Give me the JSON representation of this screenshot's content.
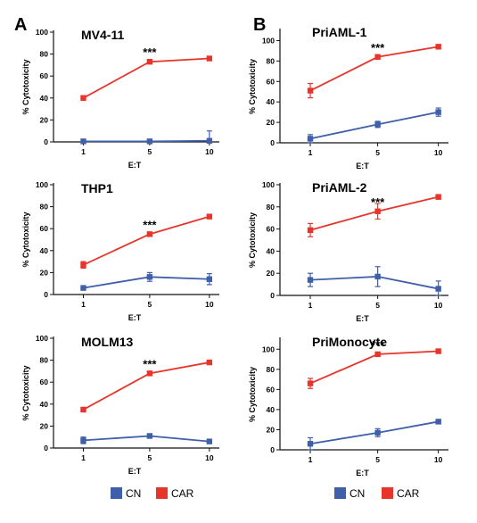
{
  "panel_letters": [
    "A",
    "B"
  ],
  "colors": {
    "CN": "#3f5faa",
    "CAR": "#e8352b"
  },
  "legend": [
    {
      "label": "CN",
      "color": "#3f5faa"
    },
    {
      "label": "CAR",
      "color": "#e8352b"
    }
  ],
  "chart_data": [
    {
      "type": "line",
      "panel": "A",
      "title": "MV4-11",
      "xlabel": "E:T",
      "ylabel": "% Cytotoxicity",
      "categories": [
        "1",
        "5",
        "10"
      ],
      "ylim": [
        0,
        100
      ],
      "yticks": [
        "0",
        "20",
        "40",
        "60",
        "80",
        "100"
      ],
      "significance": "***",
      "significance_at": "5",
      "series": [
        {
          "name": "CN",
          "color": "#3f5faa",
          "values": [
            0.5,
            0.5,
            1
          ],
          "errors": [
            1.5,
            1,
            9
          ]
        },
        {
          "name": "CAR",
          "color": "#e8352b",
          "values": [
            40,
            73,
            76
          ],
          "errors": [
            2,
            1.5,
            1
          ]
        }
      ]
    },
    {
      "type": "line",
      "panel": "A",
      "title": "THP1",
      "xlabel": "E:T",
      "ylabel": "% Cytotoxicity",
      "categories": [
        "1",
        "5",
        "10"
      ],
      "ylim": [
        0,
        100
      ],
      "yticks": [
        "0",
        "20",
        "40",
        "60",
        "80",
        "100"
      ],
      "significance": "***",
      "significance_at": "5",
      "series": [
        {
          "name": "CN",
          "color": "#3f5faa",
          "values": [
            6,
            16,
            14
          ],
          "errors": [
            1,
            4,
            5
          ]
        },
        {
          "name": "CAR",
          "color": "#e8352b",
          "values": [
            27,
            55,
            71
          ],
          "errors": [
            3,
            1.5,
            1
          ]
        }
      ]
    },
    {
      "type": "line",
      "panel": "A",
      "title": "MOLM13",
      "xlabel": "E:T",
      "ylabel": "% Cytotoxicity",
      "categories": [
        "1",
        "5",
        "10"
      ],
      "ylim": [
        0,
        100
      ],
      "yticks": [
        "0",
        "20",
        "40",
        "60",
        "80",
        "100"
      ],
      "significance": "***",
      "significance_at": "5",
      "series": [
        {
          "name": "CN",
          "color": "#3f5faa",
          "values": [
            7,
            11,
            6
          ],
          "errors": [
            3,
            1.5,
            1
          ]
        },
        {
          "name": "CAR",
          "color": "#e8352b",
          "values": [
            35,
            68,
            78
          ],
          "errors": [
            1,
            2,
            1
          ]
        }
      ]
    },
    {
      "type": "line",
      "panel": "B",
      "title": "PriAML-1",
      "xlabel": "E:T",
      "ylabel": "% Cytotoxicity",
      "categories": [
        "1",
        "5",
        "10"
      ],
      "ylim": [
        0,
        110
      ],
      "yticks": [
        "0",
        "20",
        "40",
        "60",
        "80",
        "100"
      ],
      "significance": "***",
      "significance_at": "5",
      "series": [
        {
          "name": "CN",
          "color": "#3f5faa",
          "values": [
            4,
            18,
            30
          ],
          "errors": [
            4,
            3,
            4
          ]
        },
        {
          "name": "CAR",
          "color": "#e8352b",
          "values": [
            51,
            84,
            94
          ],
          "errors": [
            7,
            1.5,
            1
          ]
        }
      ]
    },
    {
      "type": "line",
      "panel": "B",
      "title": "PriAML-2",
      "xlabel": "E:T",
      "ylabel": "% Cytotoxicity",
      "categories": [
        "1",
        "5",
        "10"
      ],
      "ylim": [
        0,
        100
      ],
      "yticks": [
        "0",
        "20",
        "40",
        "60",
        "80",
        "100"
      ],
      "significance": "***",
      "significance_at": "5",
      "series": [
        {
          "name": "CN",
          "color": "#3f5faa",
          "values": [
            14,
            17,
            6
          ],
          "errors": [
            6,
            9,
            7
          ]
        },
        {
          "name": "CAR",
          "color": "#e8352b",
          "values": [
            59,
            76,
            89
          ],
          "errors": [
            6,
            7,
            2
          ]
        }
      ]
    },
    {
      "type": "line",
      "panel": "B",
      "title": "PriMonocyte",
      "xlabel": "E:T",
      "ylabel": "% Cytotoxicity",
      "categories": [
        "1",
        "5",
        "10"
      ],
      "ylim": [
        0,
        110
      ],
      "yticks": [
        "0",
        "20",
        "40",
        "60",
        "80",
        "100"
      ],
      "significance": "***",
      "significance_at": "5",
      "series": [
        {
          "name": "CN",
          "color": "#3f5faa",
          "values": [
            6,
            17,
            28
          ],
          "errors": [
            6,
            4,
            2
          ]
        },
        {
          "name": "CAR",
          "color": "#e8352b",
          "values": [
            66,
            95,
            98
          ],
          "errors": [
            5,
            1.5,
            1
          ]
        }
      ]
    }
  ]
}
